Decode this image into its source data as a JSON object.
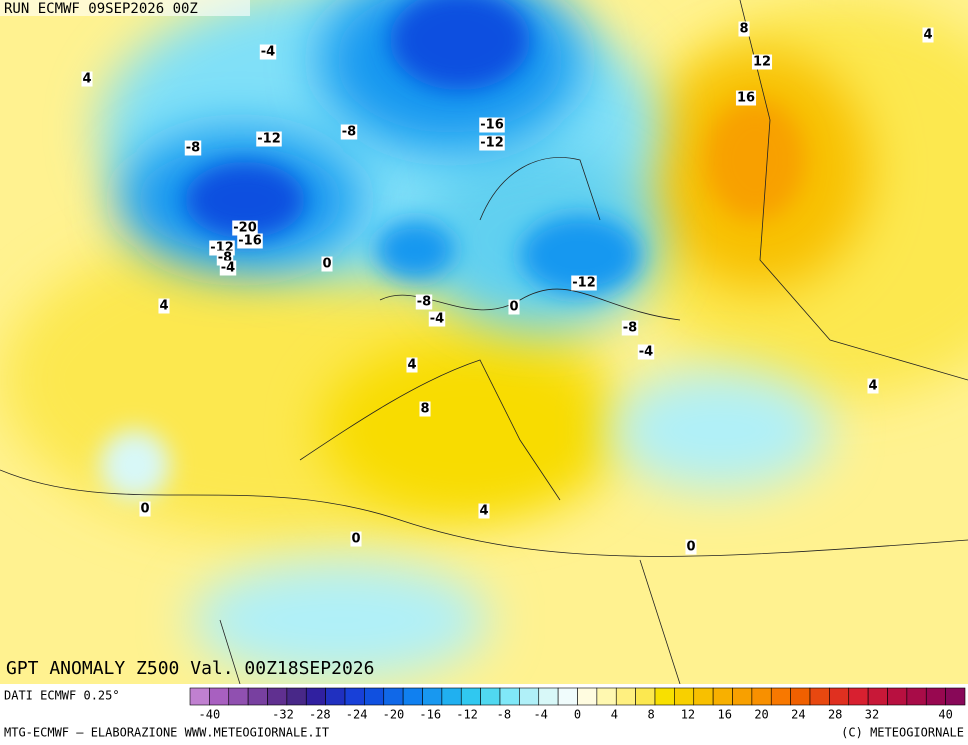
{
  "header": {
    "run": "RUN ECMWF 09SEP2026 00Z"
  },
  "map": {
    "title": "GPT ANOMALY Z500 Val. 00Z18SEP2026",
    "contour_labels": [
      "-4",
      "4",
      "8",
      "4",
      "12",
      "16",
      "-16",
      "-12",
      "-8",
      "-12",
      "-8",
      "-20",
      "-16",
      "-12",
      "-8",
      "-4",
      "0",
      "-12",
      "4",
      "-8",
      "-4",
      "0",
      "-8",
      "-4",
      "4",
      "8",
      "4",
      "0",
      "4",
      "0",
      "0"
    ]
  },
  "footer": {
    "source": "DATI ECMWF 0.25°",
    "credits": "MTG-ECMWF – ELABORAZIONE WWW.METEOGIORNALE.IT",
    "copyright": "(C) METEOGIORNALE"
  },
  "colorbar": {
    "ticks": [
      -40,
      -32,
      -28,
      -24,
      -20,
      -16,
      -12,
      -8,
      -4,
      0,
      4,
      8,
      12,
      16,
      20,
      24,
      28,
      32,
      40
    ],
    "colors": [
      "#c080d0",
      "#a860c0",
      "#9050b0",
      "#7840a0",
      "#603090",
      "#482888",
      "#3020a0",
      "#2030c0",
      "#1840d8",
      "#1050e0",
      "#1068e8",
      "#1080f0",
      "#1898f0",
      "#20b0f0",
      "#30c8f0",
      "#50d8f0",
      "#80e8f8",
      "#b0f0f8",
      "#d8f8f8",
      "#f0fcfc",
      "#fffce0",
      "#fff8b0",
      "#fff080",
      "#fce850",
      "#f8e000",
      "#f8d000",
      "#f8c000",
      "#f8b000",
      "#f8a000",
      "#f89000",
      "#f87800",
      "#f06000",
      "#e84810",
      "#e03020",
      "#d82030",
      "#c81838",
      "#b81040",
      "#a80c48",
      "#980850",
      "#880858"
    ]
  }
}
